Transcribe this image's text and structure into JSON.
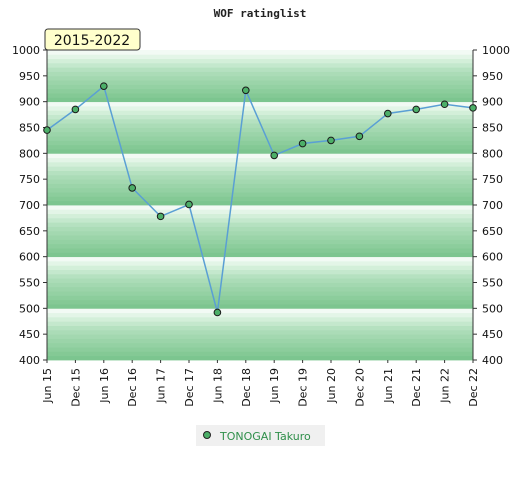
{
  "chart_data": {
    "type": "line",
    "title": "WOF ratinglist",
    "period_label": "2015-2022",
    "categories": [
      "Jun 15",
      "Dec 15",
      "Jun 16",
      "Dec 16",
      "Jun 17",
      "Dec 17",
      "Jun 18",
      "Dec 18",
      "Jun 19",
      "Dec 19",
      "Jun 20",
      "Dec 20",
      "Jun 21",
      "Dec 21",
      "Jun 22",
      "Dec 22"
    ],
    "series": [
      {
        "name": "TONOGAI Takuro",
        "values": [
          845,
          885,
          930,
          733,
          678,
          701,
          492,
          922,
          796,
          819,
          825,
          833,
          877,
          885,
          895,
          888
        ]
      }
    ],
    "ylim": [
      400,
      1000
    ],
    "yticks": [
      400,
      450,
      500,
      550,
      600,
      650,
      700,
      750,
      800,
      850,
      900,
      950,
      1000
    ],
    "ytick_labels": [
      "400",
      "450",
      "500",
      "550",
      "600",
      "650",
      "700",
      "750",
      "800",
      "850",
      "900",
      "950",
      "1000"
    ],
    "line_color": "#5a9fd4",
    "marker_color": "#4caf68",
    "band_colors": [
      "#7cc58f",
      "#84c995",
      "#8ccd9c",
      "#94d1a3",
      "#9bd4a9",
      "#a3d8b0",
      "#abdcb7",
      "#b5e1c0",
      "#c4e8cd",
      "#d3efd9",
      "#e3f5e7",
      "#f2faf4"
    ]
  }
}
